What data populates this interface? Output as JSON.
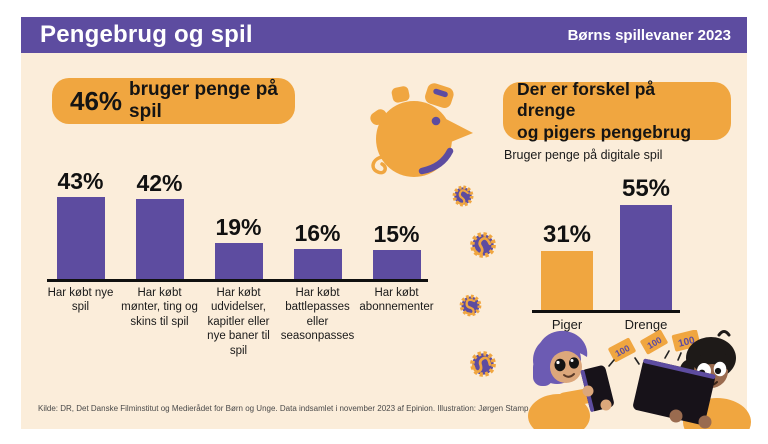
{
  "header": {
    "title": "Pengebrug og spil",
    "edition": "Børns spillevaner 2023"
  },
  "left_section": {
    "badge_stat": "46%",
    "badge_text": "bruger penge på spil"
  },
  "right_section": {
    "badge_line1": "Der er forskel på drenge",
    "badge_line2": "og pigers pengebrug",
    "subtitle": "Bruger penge på digitale spil"
  },
  "chart_data": [
    {
      "type": "bar",
      "title": "46% bruger penge på spil",
      "categories": [
        "Har købt nye spil",
        "Har købt mønter, ting og skins til spil",
        "Har købt udvidelser, kapitler eller nye baner til spil",
        "Har købt battlepasses eller seasonpasses",
        "Har købt abonnementer"
      ],
      "values": [
        43,
        42,
        19,
        16,
        15
      ],
      "value_labels": [
        "43%",
        "42%",
        "19%",
        "16%",
        "15%"
      ],
      "bar_color": "#5D4CA0",
      "ylim": [
        0,
        60
      ],
      "grid": false,
      "legend": "none"
    },
    {
      "type": "bar",
      "title": "Der er forskel på drenge og pigers pengebrug",
      "subtitle": "Bruger penge på digitale spil",
      "categories": [
        "Piger",
        "Drenge"
      ],
      "values": [
        31,
        55
      ],
      "value_labels": [
        "31%",
        "55%"
      ],
      "bar_colors": [
        "#F0A640",
        "#5D4CA0"
      ],
      "ylim": [
        0,
        60
      ],
      "grid": false,
      "legend": "none"
    }
  ],
  "illustrations": {
    "piggy_bank": "piggy-bank",
    "coins_count": 4,
    "banknote_label": "100"
  },
  "footer": {
    "source": "Kilde: DR, Det Danske Filminstitut og Medierådet for Børn og Unge. Data indsamlet i november 2023 af Epinion. Illustration: Jørgen Stamp"
  },
  "colors": {
    "purple": "#5D4CA0",
    "orange": "#F0A640",
    "background": "#FBEDDA",
    "outer": "#FFFFFF",
    "text": "#141414"
  }
}
